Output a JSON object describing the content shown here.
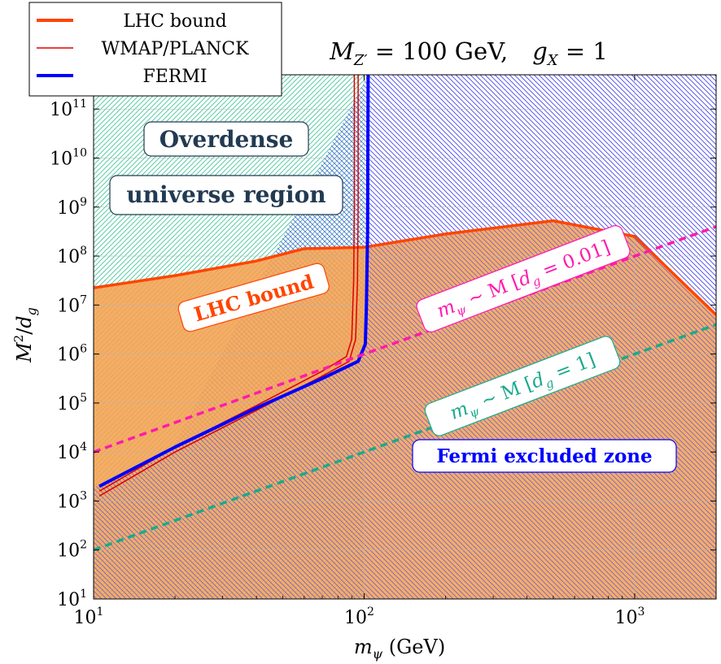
{
  "chart_data": {
    "type": "line",
    "title": "M_{Z'} = 100 GeV,   g_X = 1",
    "xlabel": "m_ψ (GeV)",
    "ylabel": "M²/d_g",
    "xscale": "log",
    "yscale": "log",
    "xlim": [
      10,
      2000
    ],
    "ylim_log10": [
      1,
      11.7
    ],
    "x_ticks": [
      {
        "value": 10,
        "base": "10",
        "exp": "1"
      },
      {
        "value": 100,
        "base": "10",
        "exp": "2"
      },
      {
        "value": 1000,
        "base": "10",
        "exp": "3"
      }
    ],
    "y_ticks": [
      {
        "log": 1,
        "base": "10",
        "exp": "1"
      },
      {
        "log": 2,
        "base": "10",
        "exp": "2"
      },
      {
        "log": 3,
        "base": "10",
        "exp": "3"
      },
      {
        "log": 4,
        "base": "10",
        "exp": "4"
      },
      {
        "log": 5,
        "base": "10",
        "exp": "5"
      },
      {
        "log": 6,
        "base": "10",
        "exp": "6"
      },
      {
        "log": 7,
        "base": "10",
        "exp": "7"
      },
      {
        "log": 8,
        "base": "10",
        "exp": "8"
      },
      {
        "log": 9,
        "base": "10",
        "exp": "9"
      },
      {
        "log": 10,
        "base": "10",
        "exp": "10"
      },
      {
        "log": 11,
        "base": "10",
        "exp": "11"
      }
    ],
    "legend": [
      {
        "label": "LHC bound",
        "color": "#ff4500",
        "width": 4
      },
      {
        "label": "WMAP/PLANCK",
        "color": "#e00000",
        "width": 1.6
      },
      {
        "label": "FERMI",
        "color": "#0000ff",
        "width": 4
      }
    ],
    "series": [
      {
        "name": "LHC bound",
        "color": "#ff4500",
        "points": [
          [
            10,
            7.35
          ],
          [
            20,
            7.6
          ],
          [
            40,
            7.9
          ],
          [
            60,
            8.15
          ],
          [
            100,
            8.18
          ],
          [
            200,
            8.45
          ],
          [
            500,
            8.72
          ],
          [
            1000,
            8.4
          ],
          [
            2000,
            6.8
          ]
        ]
      },
      {
        "name": "WMAP/PLANCK upper",
        "color": "#e00000",
        "points": [
          [
            10.5,
            3.2
          ],
          [
            20,
            4.1
          ],
          [
            40,
            4.95
          ],
          [
            70,
            5.65
          ],
          [
            86,
            5.95
          ],
          [
            90,
            6.3
          ],
          [
            91.5,
            7.5
          ],
          [
            92,
            9
          ],
          [
            92,
            11.7
          ]
        ]
      },
      {
        "name": "WMAP/PLANCK lower",
        "color": "#e00000",
        "points": [
          [
            10.5,
            3.1
          ],
          [
            20,
            4.0
          ],
          [
            40,
            4.85
          ],
          [
            70,
            5.55
          ],
          [
            88,
            5.85
          ],
          [
            93,
            6.3
          ],
          [
            94.5,
            7.5
          ],
          [
            95,
            9
          ],
          [
            95,
            11.7
          ]
        ]
      },
      {
        "name": "FERMI",
        "color": "#0000ff",
        "points": [
          [
            10.5,
            3.3
          ],
          [
            20,
            4.1
          ],
          [
            40,
            4.9
          ],
          [
            70,
            5.5
          ],
          [
            95,
            5.85
          ],
          [
            101,
            6.2
          ],
          [
            102,
            7.0
          ],
          [
            103,
            8.5
          ],
          [
            103.5,
            11.7
          ]
        ]
      },
      {
        "name": "m_ψ ~ M [d_g = 0.01]",
        "color": "#ff1aad",
        "dashed": true,
        "points": [
          [
            10,
            4
          ],
          [
            2000,
            8.6
          ]
        ]
      },
      {
        "name": "m_ψ ~ M [d_g = 1]",
        "color": "#1aaa8c",
        "dashed": true,
        "points": [
          [
            10,
            2
          ],
          [
            2000,
            6.6
          ]
        ]
      }
    ],
    "annotations": [
      {
        "text": "Overdense",
        "color": "#223a52"
      },
      {
        "text": "universe region",
        "color": "#223a52"
      },
      {
        "text": "LHC bound",
        "color": "#ff4500"
      },
      {
        "text": "m_ψ ∼ M [d_g = 0.01]",
        "color": "#ff1aad"
      },
      {
        "text": "m_ψ ∼ M [d_g = 1]",
        "color": "#1aaa8c"
      },
      {
        "text": "Fermi excluded zone",
        "color": "#0000ff"
      }
    ]
  },
  "title_parts": {
    "M": "M",
    "Msub": "Z′",
    "eq1": " = 100 GeV,",
    "g": "g",
    "gsub": "X",
    "eq2": " = 1"
  },
  "xlabel_parts": {
    "m": "m",
    "sub": "ψ",
    "unit": " (GeV)"
  },
  "ylabel_parts": {
    "M": "M",
    "sup": "2",
    "slash": "/",
    "d": "d",
    "sub": "g"
  },
  "ann_parts": {
    "pink": {
      "m": "m",
      "sub": "ψ",
      "sim": " ∼ M [",
      "d": "d",
      "dsub": "g",
      "val": " = 0.01]"
    },
    "green": {
      "m": "m",
      "sub": "ψ",
      "sim": " ∼ M [",
      "d": "d",
      "dsub": "g",
      "val": " = 1]"
    }
  }
}
